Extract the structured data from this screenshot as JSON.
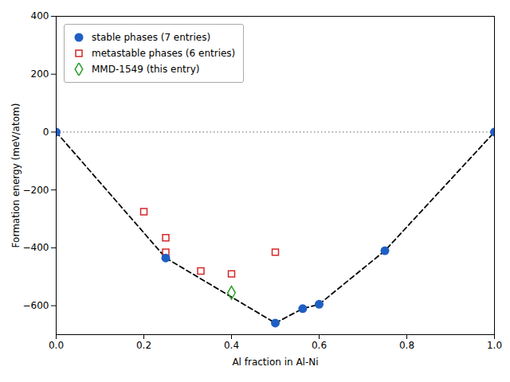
{
  "chart_data": {
    "type": "scatter",
    "xlabel": "Al fraction in Al-Ni",
    "ylabel": "Formation energy (meV/atom)",
    "xlim": [
      0.0,
      1.0
    ],
    "ylim": [
      -700,
      400
    ],
    "xticks": [
      {
        "value": 0.0,
        "label": "0.0"
      },
      0.2,
      0.4,
      0.6,
      0.8,
      {
        "value": 1.0,
        "label": "1.0"
      }
    ],
    "yticks": [
      -600,
      -400,
      -200,
      0,
      200,
      400
    ],
    "grid": false,
    "legend": "upper left",
    "series": [
      {
        "type": "hline",
        "values": [
          0
        ],
        "color": "gray",
        "line_style": "dotted"
      },
      {
        "type": "line",
        "x": [
          0.0,
          0.25,
          0.5,
          0.5625,
          0.6,
          0.75,
          1.0
        ],
        "values": [
          0,
          -435,
          -660,
          -610,
          -595,
          -410,
          0
        ],
        "color": "black",
        "line_style": "dashed"
      },
      {
        "name": "stable phases (7 entries)",
        "type": "scatter",
        "marker": "circle",
        "color": "#1f5fc4",
        "x": [
          0.0,
          0.25,
          0.5,
          0.5625,
          0.6,
          0.75,
          1.0
        ],
        "values": [
          0,
          -435,
          -660,
          -610,
          -595,
          -410,
          0
        ]
      },
      {
        "name": "metastable phases (6 entries)",
        "type": "scatter",
        "marker": "open_square",
        "color": "#d62728",
        "x": [
          0.2,
          0.25,
          0.25,
          0.33,
          0.4,
          0.5
        ],
        "values": [
          -275,
          -365,
          -415,
          -480,
          -490,
          -415
        ]
      },
      {
        "name": "MMD-1549 (this entry)",
        "type": "scatter",
        "marker": "open_diamond",
        "color": "#2ca02c",
        "x": [
          0.4
        ],
        "values": [
          -555
        ]
      }
    ]
  }
}
